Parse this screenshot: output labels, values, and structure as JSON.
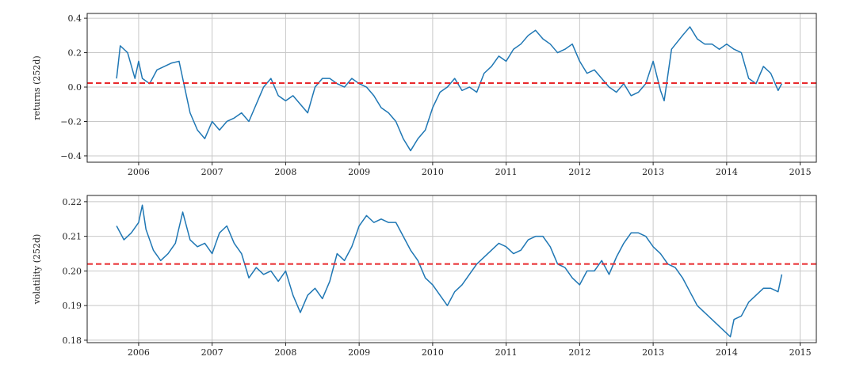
{
  "chart_data": [
    {
      "type": "line",
      "ylabel": "returns (252d)",
      "xlim": [
        2005.3,
        2015.22
      ],
      "xticks": [
        2006,
        2007,
        2008,
        2009,
        2010,
        2011,
        2012,
        2013,
        2014,
        2015
      ],
      "ylim": [
        -0.437,
        0.428
      ],
      "yticks": [
        {
          "value": -0.4,
          "label": "−0.4"
        },
        {
          "value": -0.2,
          "label": "−0.2"
        },
        {
          "value": 0,
          "label": "0.0"
        },
        0.2,
        0.4
      ],
      "grid": true,
      "hline": {
        "value": 0.023,
        "color": "#e8282b"
      },
      "x": [
        2005.7,
        2005.75,
        2005.85,
        2005.95,
        2006.0,
        2006.05,
        2006.15,
        2006.25,
        2006.35,
        2006.45,
        2006.55,
        2006.6,
        2006.7,
        2006.8,
        2006.9,
        2007.0,
        2007.1,
        2007.2,
        2007.3,
        2007.4,
        2007.5,
        2007.6,
        2007.7,
        2007.8,
        2007.9,
        2008.0,
        2008.1,
        2008.2,
        2008.3,
        2008.4,
        2008.5,
        2008.6,
        2008.7,
        2008.8,
        2008.9,
        2009.0,
        2009.1,
        2009.2,
        2009.3,
        2009.4,
        2009.5,
        2009.6,
        2009.7,
        2009.8,
        2009.9,
        2010.0,
        2010.1,
        2010.2,
        2010.3,
        2010.4,
        2010.5,
        2010.6,
        2010.7,
        2010.8,
        2010.9,
        2011.0,
        2011.1,
        2011.2,
        2011.3,
        2011.4,
        2011.5,
        2011.6,
        2011.7,
        2011.8,
        2011.9,
        2012.0,
        2012.1,
        2012.2,
        2012.3,
        2012.4,
        2012.5,
        2012.6,
        2012.7,
        2012.8,
        2012.9,
        2013.0,
        2013.1,
        2013.15,
        2013.25,
        2013.4,
        2013.5,
        2013.6,
        2013.7,
        2013.8,
        2013.9,
        2014.0,
        2014.1,
        2014.2,
        2014.3,
        2014.4,
        2014.5,
        2014.6,
        2014.7,
        2014.75
      ],
      "series": [
        {
          "color": "#1f77b4",
          "values": [
            0.05,
            0.24,
            0.2,
            0.05,
            0.15,
            0.05,
            0.02,
            0.1,
            0.12,
            0.14,
            0.15,
            0.05,
            -0.15,
            -0.25,
            -0.3,
            -0.2,
            -0.25,
            -0.2,
            -0.18,
            -0.15,
            -0.2,
            -0.1,
            0.0,
            0.05,
            -0.05,
            -0.08,
            -0.05,
            -0.1,
            -0.15,
            0.0,
            0.05,
            0.05,
            0.02,
            0.0,
            0.05,
            0.02,
            0.0,
            -0.05,
            -0.12,
            -0.15,
            -0.2,
            -0.3,
            -0.37,
            -0.3,
            -0.25,
            -0.12,
            -0.03,
            0.0,
            0.05,
            -0.02,
            0.0,
            -0.03,
            0.08,
            0.12,
            0.18,
            0.15,
            0.22,
            0.25,
            0.3,
            0.33,
            0.28,
            0.25,
            0.2,
            0.22,
            0.25,
            0.15,
            0.08,
            0.1,
            0.05,
            0.0,
            -0.03,
            0.02,
            -0.05,
            -0.03,
            0.02,
            0.15,
            -0.02,
            -0.08,
            0.22,
            0.3,
            0.35,
            0.28,
            0.25,
            0.25,
            0.22,
            0.25,
            0.22,
            0.2,
            0.05,
            0.02,
            0.12,
            0.08,
            -0.02,
            0.02
          ]
        }
      ]
    },
    {
      "type": "line",
      "ylabel": "volatility (252d)",
      "xlim": [
        2005.3,
        2015.22
      ],
      "xticks": [
        2006,
        2007,
        2008,
        2009,
        2010,
        2011,
        2012,
        2013,
        2014,
        2015
      ],
      "ylim": [
        0.1793,
        0.2218
      ],
      "yticks": [
        0.18,
        0.19,
        {
          "value": 0.2,
          "label": "0.20"
        },
        0.21,
        0.22
      ],
      "grid": true,
      "hline": {
        "value": 0.202,
        "color": "#e8282b"
      },
      "x": [
        2005.7,
        2005.8,
        2005.9,
        2006.0,
        2006.05,
        2006.1,
        2006.2,
        2006.3,
        2006.4,
        2006.5,
        2006.6,
        2006.7,
        2006.8,
        2006.9,
        2007.0,
        2007.1,
        2007.2,
        2007.3,
        2007.4,
        2007.5,
        2007.6,
        2007.7,
        2007.8,
        2007.9,
        2008.0,
        2008.1,
        2008.2,
        2008.3,
        2008.4,
        2008.5,
        2008.6,
        2008.7,
        2008.8,
        2008.9,
        2009.0,
        2009.1,
        2009.2,
        2009.3,
        2009.4,
        2009.5,
        2009.6,
        2009.7,
        2009.8,
        2009.9,
        2010.0,
        2010.1,
        2010.2,
        2010.3,
        2010.4,
        2010.5,
        2010.6,
        2010.7,
        2010.8,
        2010.9,
        2011.0,
        2011.1,
        2011.2,
        2011.3,
        2011.4,
        2011.5,
        2011.6,
        2011.7,
        2011.8,
        2011.9,
        2012.0,
        2012.1,
        2012.2,
        2012.3,
        2012.4,
        2012.5,
        2012.6,
        2012.7,
        2012.8,
        2012.9,
        2013.0,
        2013.1,
        2013.2,
        2013.3,
        2013.4,
        2013.5,
        2013.6,
        2013.7,
        2013.8,
        2013.9,
        2014.0,
        2014.05,
        2014.1,
        2014.2,
        2014.3,
        2014.4,
        2014.5,
        2014.6,
        2014.7,
        2014.75
      ],
      "series": [
        {
          "color": "#1f77b4",
          "values": [
            0.213,
            0.209,
            0.211,
            0.214,
            0.219,
            0.212,
            0.206,
            0.203,
            0.205,
            0.208,
            0.217,
            0.209,
            0.207,
            0.208,
            0.205,
            0.211,
            0.213,
            0.208,
            0.205,
            0.198,
            0.201,
            0.199,
            0.2,
            0.197,
            0.2,
            0.193,
            0.188,
            0.193,
            0.195,
            0.192,
            0.197,
            0.205,
            0.203,
            0.207,
            0.213,
            0.216,
            0.214,
            0.215,
            0.214,
            0.214,
            0.21,
            0.206,
            0.203,
            0.198,
            0.196,
            0.193,
            0.19,
            0.194,
            0.196,
            0.199,
            0.202,
            0.204,
            0.206,
            0.208,
            0.207,
            0.205,
            0.206,
            0.209,
            0.21,
            0.21,
            0.207,
            0.202,
            0.201,
            0.198,
            0.196,
            0.2,
            0.2,
            0.203,
            0.199,
            0.204,
            0.208,
            0.211,
            0.211,
            0.21,
            0.207,
            0.205,
            0.202,
            0.201,
            0.198,
            0.194,
            0.19,
            0.188,
            0.186,
            0.184,
            0.182,
            0.181,
            0.186,
            0.187,
            0.191,
            0.193,
            0.195,
            0.195,
            0.194,
            0.199
          ]
        }
      ]
    }
  ]
}
